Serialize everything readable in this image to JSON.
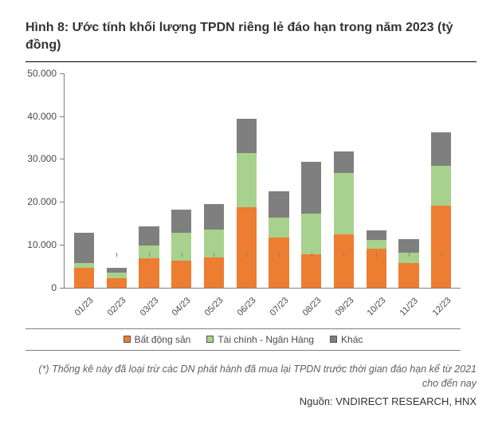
{
  "title": "Hình 8: Ước tính khối lượng TPDN riêng lẻ đáo hạn trong năm 2023 (tỷ đồng)",
  "chart": {
    "type": "stacked-bar",
    "ylim": [
      0,
      50000
    ],
    "ytick_step": 10000,
    "ytick_labels": [
      "0",
      "10.000",
      "20.000",
      "30.000",
      "40.000",
      "50.000"
    ],
    "categories": [
      "01/23",
      "02/23",
      "03/23",
      "04/23",
      "05/23",
      "06/23",
      "07/23",
      "08/23",
      "09/23",
      "10/23",
      "11/23",
      "12/23"
    ],
    "series": [
      {
        "name": "Bất động sản",
        "color": "#ed7d31",
        "values": [
          4700,
          2200,
          6800,
          6200,
          7000,
          18800,
          11600,
          7800,
          12500,
          9100,
          5700,
          19100
        ]
      },
      {
        "name": "Tài chính - Ngân Hàng",
        "color": "#a9d18e",
        "values": [
          1100,
          1300,
          3000,
          6600,
          6600,
          12500,
          4800,
          9400,
          14300,
          2100,
          2500,
          9300
        ]
      },
      {
        "name": "Khác",
        "color": "#7f7f7f",
        "values": [
          7000,
          1200,
          4400,
          5400,
          5800,
          8000,
          6000,
          12200,
          4900,
          2100,
          3100,
          7900
        ]
      }
    ],
    "axis_color": "#7f7f7f",
    "label_color": "#4a4a4a",
    "label_fontsize": 12,
    "background_color": "#ffffff",
    "bar_width": 0.62
  },
  "legend": {
    "items": [
      {
        "label": "Bất động sản",
        "color": "#ed7d31"
      },
      {
        "label": "Tài chính - Ngân Hàng",
        "color": "#a9d18e"
      },
      {
        "label": "Khác",
        "color": "#7f7f7f"
      }
    ]
  },
  "footnote": "(*) Thống kê này đã loại trừ các DN phát hành đã mua lại TPDN trước thời gian đáo hạn kể từ 2021 cho đến nay",
  "source": "Nguồn: VNDIRECT RESEARCH, HNX"
}
